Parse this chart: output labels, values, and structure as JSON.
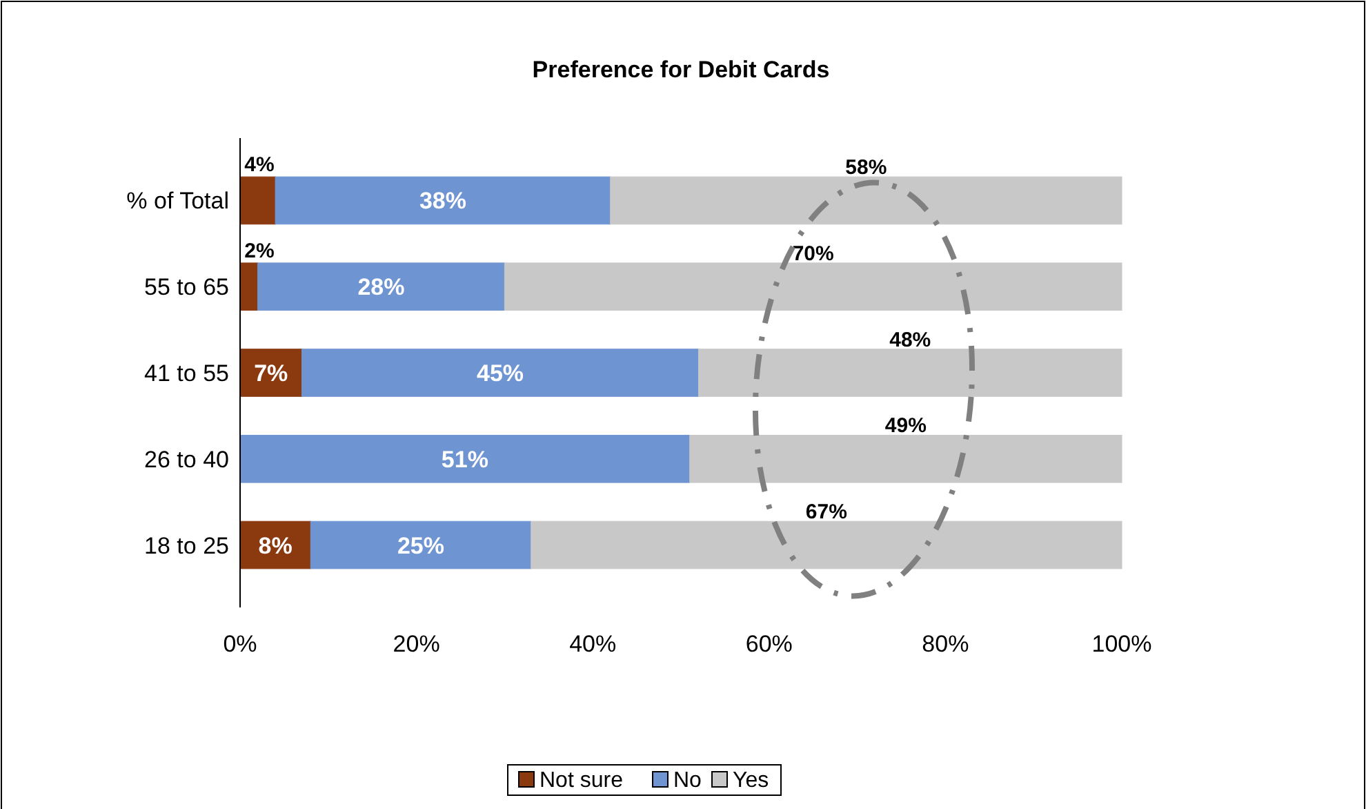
{
  "chart_data": {
    "type": "bar",
    "orientation": "horizontal",
    "stacked": true,
    "title": "Preference for Debit Cards",
    "categories": [
      "% of  Total",
      "55 to 65",
      "41 to 55",
      "26 to 40",
      "18 to 25"
    ],
    "series": [
      {
        "name": "Not sure",
        "color": "#8b3a10",
        "values": [
          4,
          2,
          7,
          0,
          8
        ],
        "value_labels": [
          "4%",
          "2%",
          "7%",
          null,
          "8%"
        ]
      },
      {
        "name": "No",
        "color": "#6f94d2",
        "values": [
          38,
          28,
          45,
          51,
          25
        ],
        "value_labels": [
          "38%",
          "28%",
          "45%",
          "51%",
          "25%"
        ]
      },
      {
        "name": "Yes",
        "color": "#c8c8c8",
        "values": [
          58,
          70,
          48,
          49,
          67
        ],
        "value_labels": [
          "58%",
          "70%",
          "48%",
          "49%",
          "67%"
        ]
      }
    ],
    "xlim": [
      0,
      100
    ],
    "xticks": [
      {
        "value": 0,
        "label": "0%"
      },
      {
        "value": 20,
        "label": "20%"
      },
      {
        "value": 40,
        "label": "40%"
      },
      {
        "value": 60,
        "label": "60%"
      },
      {
        "value": 80,
        "label": "80%"
      },
      {
        "value": 100,
        "label": "100%"
      }
    ],
    "grid": false,
    "legend": "bottom"
  }
}
